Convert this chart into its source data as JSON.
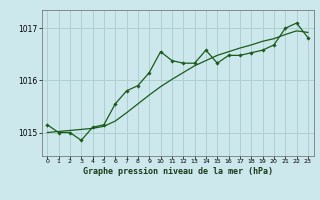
{
  "title": "Graphe pression niveau de la mer (hPa)",
  "bg_color": "#cce8ec",
  "grid_color": "#aacccc",
  "line_color": "#1a5c1a",
  "marker_color": "#1a5c1a",
  "x_ticks": [
    0,
    1,
    2,
    3,
    4,
    5,
    6,
    7,
    8,
    9,
    10,
    11,
    12,
    13,
    14,
    15,
    16,
    17,
    18,
    19,
    20,
    21,
    22,
    23
  ],
  "xlim": [
    -0.5,
    23.5
  ],
  "ylim": [
    1014.55,
    1017.35
  ],
  "yticks": [
    1015,
    1016,
    1017
  ],
  "line1_x": [
    0,
    1,
    2,
    3,
    4,
    5,
    6,
    7,
    8,
    9,
    10,
    11,
    12,
    13,
    14,
    15,
    16,
    17,
    18,
    19,
    20,
    21,
    22,
    23
  ],
  "line1_y": [
    1015.15,
    1015.0,
    1015.0,
    1014.85,
    1015.1,
    1015.15,
    1015.55,
    1015.8,
    1015.9,
    1016.15,
    1016.55,
    1016.38,
    1016.33,
    1016.33,
    1016.58,
    1016.33,
    1016.48,
    1016.48,
    1016.53,
    1016.58,
    1016.68,
    1017.0,
    1017.1,
    1016.82
  ],
  "line2_x": [
    0,
    1,
    2,
    3,
    4,
    5,
    6,
    7,
    8,
    9,
    10,
    11,
    12,
    13,
    14,
    15,
    16,
    17,
    18,
    19,
    20,
    21,
    22,
    23
  ],
  "line2_y": [
    1015.0,
    1015.02,
    1015.04,
    1015.06,
    1015.08,
    1015.12,
    1015.22,
    1015.38,
    1015.55,
    1015.72,
    1015.88,
    1016.02,
    1016.15,
    1016.28,
    1016.38,
    1016.48,
    1016.55,
    1016.62,
    1016.68,
    1016.75,
    1016.8,
    1016.88,
    1016.95,
    1016.92
  ]
}
